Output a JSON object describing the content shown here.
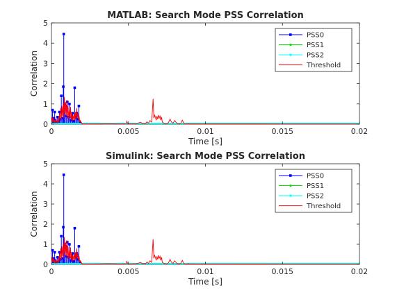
{
  "chart_data": [
    {
      "type": "line",
      "title": "MATLAB: Search Mode PSS Correlation",
      "xlabel": "Time [s]",
      "ylabel": "Correlation",
      "xlim": [
        0,
        0.02
      ],
      "ylim": [
        0,
        5
      ],
      "xticks": [
        "0",
        "0.005",
        "0.01",
        "0.015",
        "0.02"
      ],
      "yticks": [
        "0",
        "1",
        "2",
        "3",
        "4",
        "5"
      ],
      "grid": false,
      "legend_location": "top-right",
      "series": [
        {
          "name": "PSS0",
          "style": "stem",
          "color": "#0000ff",
          "marker": "square",
          "x": [
            7e-05,
            0.00012,
            0.00016,
            0.00021,
            0.00026,
            0.00033,
            0.0004,
            0.00046,
            0.00052,
            0.00058,
            0.00064,
            0.00071,
            0.00077,
            0.0008,
            0.00083,
            0.00089,
            0.00096,
            0.00103,
            0.0011,
            0.00117,
            0.00124,
            0.00131,
            0.00137,
            0.00144,
            0.00151,
            0.00158,
            0.00164,
            0.00171,
            0.00178,
            0.00185
          ],
          "y": [
            0.7,
            0.22,
            0.3,
            0.6,
            0.2,
            0.08,
            0.35,
            0.15,
            0.6,
            0.25,
            1.4,
            0.3,
            1.85,
            4.45,
            1.0,
            0.9,
            0.4,
            1.1,
            0.35,
            1.0,
            0.2,
            0.35,
            0.55,
            0.15,
            1.8,
            0.35,
            0.55,
            0.25,
            0.9,
            0.1
          ]
        },
        {
          "name": "PSS1",
          "style": "stem",
          "color": "#00e000",
          "marker": "dot",
          "x": [
            0,
            0.02
          ],
          "y": [
            0.03,
            0.03
          ]
        },
        {
          "name": "PSS2",
          "style": "stem",
          "color": "#00ffff",
          "marker": "dot",
          "x": [
            0,
            0.02
          ],
          "y": [
            0.03,
            0.03
          ]
        },
        {
          "name": "Threshold",
          "style": "line",
          "color": "#ff0000",
          "x": [
            0,
            4e-05,
            8e-05,
            0.00012,
            0.00016,
            0.0002,
            0.00024,
            0.00028,
            0.00032,
            0.00036,
            0.0004,
            0.00044,
            0.00048,
            0.00052,
            0.00056,
            0.0006,
            0.00064,
            0.00068,
            0.00072,
            0.00076,
            0.0008,
            0.00084,
            0.00088,
            0.00092,
            0.00096,
            0.001,
            0.00104,
            0.00108,
            0.00112,
            0.00116,
            0.0012,
            0.00124,
            0.00128,
            0.00132,
            0.00136,
            0.0014,
            0.00144,
            0.00148,
            0.00152,
            0.00156,
            0.0016,
            0.00164,
            0.00168,
            0.00172,
            0.00176,
            0.0018,
            0.00184,
            0.00188,
            0.00192,
            0.00196,
            0.002,
            0.0025,
            0.003,
            0.0035,
            0.004,
            0.0045,
            0.00485,
            0.0049,
            0.00495,
            0.005,
            0.0055,
            0.0058,
            0.0059,
            0.006,
            0.0061,
            0.0062,
            0.0063,
            0.0064,
            0.0065,
            0.00655,
            0.0066,
            0.00665,
            0.0067,
            0.00675,
            0.0068,
            0.00685,
            0.0069,
            0.00695,
            0.007,
            0.00705,
            0.0071,
            0.00715,
            0.0072,
            0.0073,
            0.0074,
            0.0075,
            0.0076,
            0.0077,
            0.0078,
            0.0079,
            0.008,
            0.0081,
            0.0082,
            0.0083,
            0.0084,
            0.0085,
            0.0086,
            0.0087,
            0.0088,
            0.0089,
            0.009,
            0.0095,
            0.01,
            0.012,
            0.015,
            0.02
          ],
          "y": [
            0.05,
            0.35,
            0.12,
            0.3,
            0.1,
            0.2,
            0.05,
            0.25,
            0.08,
            0.15,
            0.05,
            0.3,
            0.1,
            0.5,
            0.2,
            0.8,
            0.25,
            0.9,
            0.4,
            1.05,
            0.3,
            1.35,
            0.5,
            1.1,
            0.4,
            1.2,
            0.3,
            0.9,
            0.25,
            0.7,
            0.3,
            0.85,
            0.2,
            0.6,
            0.15,
            0.45,
            0.2,
            0.55,
            0.2,
            0.6,
            0.25,
            0.8,
            0.3,
            0.55,
            0.2,
            0.4,
            0.1,
            0.2,
            0.05,
            0.08,
            0.02,
            0.02,
            0.02,
            0.03,
            0.03,
            0.02,
            0.03,
            0.15,
            0.03,
            0.02,
            0.03,
            0.1,
            0.03,
            0.05,
            0.02,
            0.12,
            0.05,
            0.18,
            0.1,
            0.6,
            1.25,
            0.3,
            0.45,
            0.35,
            0.2,
            0.4,
            0.25,
            0.45,
            0.3,
            0.4,
            0.2,
            0.35,
            0.1,
            0.05,
            0.03,
            0.02,
            0.08,
            0.25,
            0.1,
            0.05,
            0.18,
            0.08,
            0.03,
            0.02,
            0.05,
            0.2,
            0.03,
            0.02,
            0.02,
            0.03,
            0.02,
            0.02,
            0.02,
            0.02,
            0.01,
            0.01
          ]
        }
      ]
    },
    {
      "type": "line",
      "title": "Simulink: Search Mode PSS Correlation",
      "xlabel": "Time [s]",
      "ylabel": "Correlation",
      "xlim": [
        0,
        0.02
      ],
      "ylim": [
        0,
        5
      ],
      "xticks": [
        "0",
        "0.005",
        "0.01",
        "0.015",
        "0.02"
      ],
      "yticks": [
        "0",
        "1",
        "2",
        "3",
        "4",
        "5"
      ],
      "grid": false,
      "legend_location": "top-right",
      "series": [
        {
          "name": "PSS0",
          "style": "stem",
          "color": "#0000ff",
          "marker": "square",
          "x": [
            7e-05,
            0.00012,
            0.00016,
            0.00021,
            0.00026,
            0.00033,
            0.0004,
            0.00046,
            0.00052,
            0.00058,
            0.00064,
            0.00071,
            0.00077,
            0.0008,
            0.00083,
            0.00089,
            0.00096,
            0.00103,
            0.0011,
            0.00117,
            0.00124,
            0.00131,
            0.00137,
            0.00144,
            0.00151,
            0.00158,
            0.00164,
            0.00171,
            0.00178,
            0.00185
          ],
          "y": [
            0.7,
            0.22,
            0.3,
            0.6,
            0.2,
            0.08,
            0.35,
            0.15,
            0.6,
            0.25,
            1.4,
            0.3,
            1.85,
            4.45,
            1.0,
            0.9,
            0.4,
            1.1,
            0.35,
            1.0,
            0.2,
            0.35,
            0.55,
            0.15,
            1.8,
            0.35,
            0.55,
            0.25,
            0.9,
            0.1
          ]
        },
        {
          "name": "PSS1",
          "style": "stem",
          "color": "#00e000",
          "marker": "dot",
          "x": [
            0,
            0.02
          ],
          "y": [
            0.03,
            0.03
          ]
        },
        {
          "name": "PSS2",
          "style": "stem",
          "color": "#00ffff",
          "marker": "dot",
          "x": [
            0,
            0.02
          ],
          "y": [
            0.03,
            0.03
          ]
        },
        {
          "name": "Threshold",
          "style": "line",
          "color": "#ff0000",
          "x": [
            0,
            4e-05,
            8e-05,
            0.00012,
            0.00016,
            0.0002,
            0.00024,
            0.00028,
            0.00032,
            0.00036,
            0.0004,
            0.00044,
            0.00048,
            0.00052,
            0.00056,
            0.0006,
            0.00064,
            0.00068,
            0.00072,
            0.00076,
            0.0008,
            0.00084,
            0.00088,
            0.00092,
            0.00096,
            0.001,
            0.00104,
            0.00108,
            0.00112,
            0.00116,
            0.0012,
            0.00124,
            0.00128,
            0.00132,
            0.00136,
            0.0014,
            0.00144,
            0.00148,
            0.00152,
            0.00156,
            0.0016,
            0.00164,
            0.00168,
            0.00172,
            0.00176,
            0.0018,
            0.00184,
            0.00188,
            0.00192,
            0.00196,
            0.002,
            0.0025,
            0.003,
            0.0035,
            0.004,
            0.0045,
            0.00485,
            0.0049,
            0.00495,
            0.005,
            0.0055,
            0.0058,
            0.0059,
            0.006,
            0.0061,
            0.0062,
            0.0063,
            0.0064,
            0.0065,
            0.00655,
            0.0066,
            0.00665,
            0.0067,
            0.00675,
            0.0068,
            0.00685,
            0.0069,
            0.00695,
            0.007,
            0.00705,
            0.0071,
            0.00715,
            0.0072,
            0.0073,
            0.0074,
            0.0075,
            0.0076,
            0.0077,
            0.0078,
            0.0079,
            0.008,
            0.0081,
            0.0082,
            0.0083,
            0.0084,
            0.0085,
            0.0086,
            0.0087,
            0.0088,
            0.0089,
            0.009,
            0.0095,
            0.01,
            0.012,
            0.015,
            0.02
          ],
          "y": [
            0.05,
            0.35,
            0.12,
            0.3,
            0.1,
            0.2,
            0.05,
            0.25,
            0.08,
            0.15,
            0.05,
            0.3,
            0.1,
            0.5,
            0.2,
            0.8,
            0.25,
            0.9,
            0.4,
            1.05,
            0.3,
            1.35,
            0.5,
            1.1,
            0.4,
            1.2,
            0.3,
            0.9,
            0.25,
            0.7,
            0.3,
            0.85,
            0.2,
            0.6,
            0.15,
            0.45,
            0.2,
            0.55,
            0.2,
            0.6,
            0.25,
            0.8,
            0.3,
            0.55,
            0.2,
            0.4,
            0.1,
            0.2,
            0.05,
            0.08,
            0.02,
            0.02,
            0.02,
            0.03,
            0.03,
            0.02,
            0.03,
            0.15,
            0.03,
            0.02,
            0.03,
            0.1,
            0.03,
            0.05,
            0.02,
            0.12,
            0.05,
            0.18,
            0.1,
            0.6,
            1.25,
            0.3,
            0.45,
            0.35,
            0.2,
            0.4,
            0.25,
            0.45,
            0.3,
            0.4,
            0.2,
            0.35,
            0.1,
            0.05,
            0.03,
            0.02,
            0.08,
            0.25,
            0.1,
            0.05,
            0.18,
            0.08,
            0.03,
            0.02,
            0.05,
            0.2,
            0.03,
            0.02,
            0.02,
            0.03,
            0.02,
            0.02,
            0.02,
            0.02,
            0.01,
            0.01
          ]
        }
      ]
    }
  ]
}
